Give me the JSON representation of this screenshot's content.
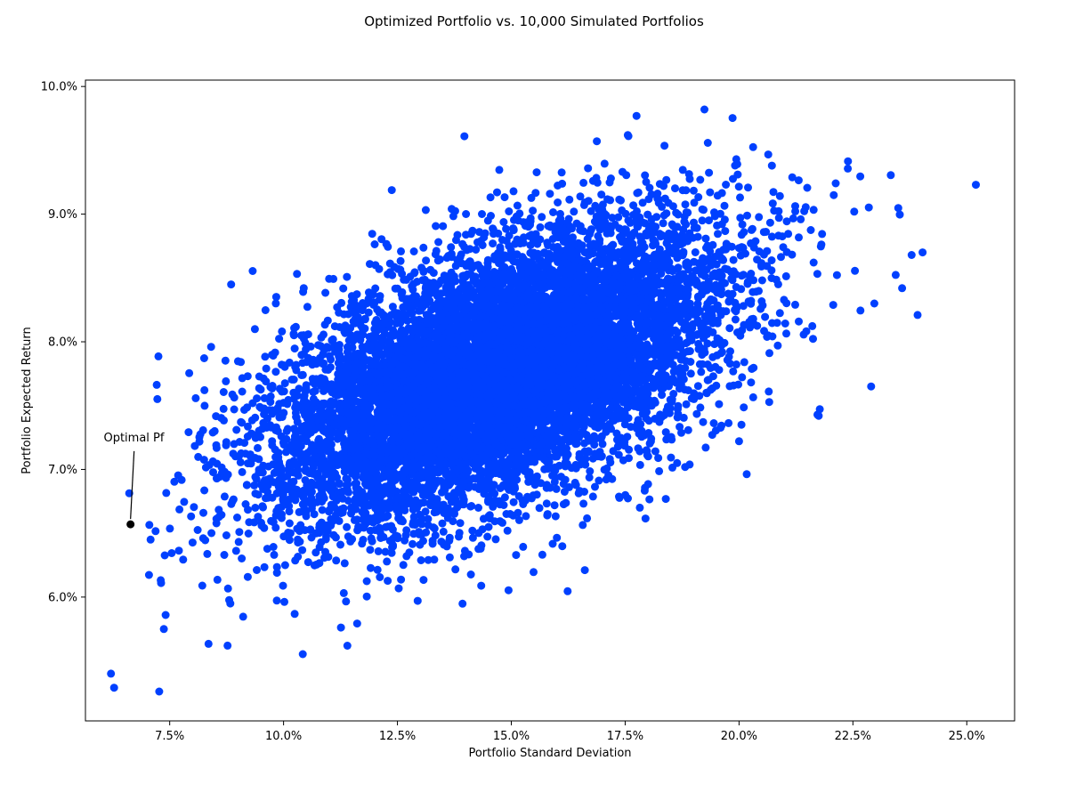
{
  "chart_data": {
    "type": "scatter",
    "title": "Optimized Portfolio vs. 10,000 Simulated Portfolios",
    "xlabel": "Portfolio Standard Deviation",
    "ylabel": "Portfolio Expected Return",
    "xlim": [
      0.0565,
      0.2605
    ],
    "ylim": [
      0.0503,
      0.1005
    ],
    "x_ticks": [
      {
        "value": 0.075,
        "label": "7.5%"
      },
      {
        "value": 0.1,
        "label": "10.0%"
      },
      {
        "value": 0.125,
        "label": "12.5%"
      },
      {
        "value": 0.15,
        "label": "15.0%"
      },
      {
        "value": 0.175,
        "label": "17.5%"
      },
      {
        "value": 0.2,
        "label": "20.0%"
      },
      {
        "value": 0.225,
        "label": "22.5%"
      },
      {
        "value": 0.25,
        "label": "25.0%"
      }
    ],
    "y_ticks": [
      {
        "value": 0.06,
        "label": "6.0%"
      },
      {
        "value": 0.07,
        "label": "7.0%"
      },
      {
        "value": 0.08,
        "label": "8.0%"
      },
      {
        "value": 0.09,
        "label": "9.0%"
      },
      {
        "value": 0.1,
        "label": "10.0%"
      }
    ],
    "grid": false,
    "series": [
      {
        "count": 10000,
        "color": "#0040ff",
        "center": {
          "x": 0.1475,
          "y": 0.0775
        },
        "std_dev": {
          "x": 0.0245,
          "y": 0.0058
        },
        "correlation": 0.55,
        "x_range": [
          0.062,
          0.252
        ],
        "y_range": [
          0.0525,
          0.0982
        ],
        "outliers": [
          {
            "x": 0.0621,
            "y": 0.054
          },
          {
            "x": 0.0628,
            "y": 0.0529
          },
          {
            "x": 0.0727,
            "y": 0.0526
          },
          {
            "x": 0.0731,
            "y": 0.0611
          },
          {
            "x": 0.0741,
            "y": 0.0586
          },
          {
            "x": 0.0708,
            "y": 0.0645
          },
          {
            "x": 0.0877,
            "y": 0.0562
          },
          {
            "x": 0.1397,
            "y": 0.0961
          },
          {
            "x": 0.1924,
            "y": 0.0982
          },
          {
            "x": 0.1775,
            "y": 0.0977
          },
          {
            "x": 0.252,
            "y": 0.0923
          },
          {
            "x": 0.2403,
            "y": 0.087
          },
          {
            "x": 0.2379,
            "y": 0.0868
          },
          {
            "x": 0.2358,
            "y": 0.0842
          },
          {
            "x": 0.2392,
            "y": 0.0821
          },
          {
            "x": 0.2297,
            "y": 0.083
          },
          {
            "x": 0.229,
            "y": 0.0765
          },
          {
            "x": 0.2175,
            "y": 0.0742
          }
        ]
      }
    ],
    "optimal_point": {
      "x": 0.0664,
      "y": 0.0657,
      "color": "#000000"
    },
    "annotation": {
      "text": "Optimal Pf",
      "target": {
        "x": 0.0664,
        "y": 0.0657
      },
      "text_position": {
        "x": 0.0605,
        "y": 0.0722
      }
    }
  }
}
